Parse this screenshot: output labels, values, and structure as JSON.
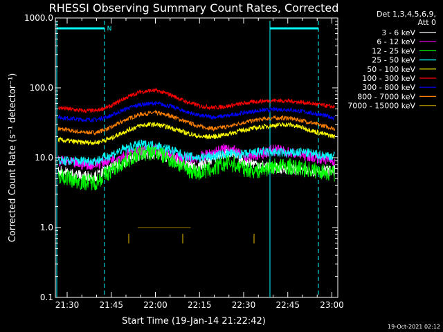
{
  "chart_data": {
    "type": "line",
    "title": "RHESSI Observing Summary Count Rates, Corrected",
    "xlabel": "Start Time (19-Jan-14 21:22:42)",
    "ylabel": "Corrected Count Rate (s⁻¹ detector⁻¹)",
    "yscale": "log",
    "ylim": [
      0.1,
      1000
    ],
    "xlim_minutes_from_2100": [
      26,
      122
    ],
    "ytick_labels": [
      "0.1",
      "1.0",
      "10.0",
      "100.0",
      "1000.0"
    ],
    "xtick_labels": [
      "21:30",
      "21:45",
      "22:00",
      "22:15",
      "22:30",
      "22:45",
      "23:00"
    ],
    "legend_header": [
      "Det 1,3,4,5,6,9,",
      "Att 0"
    ],
    "legend_placement": "right",
    "annotation_N": "N",
    "timestamp": "19-Oct-2021 02:12",
    "series": [
      {
        "name": "3 - 6 keV",
        "color": "#ffffff",
        "x": [
          27,
          35,
          40,
          45,
          50,
          55,
          60,
          65,
          70,
          75,
          80,
          85,
          90,
          95,
          100,
          105,
          110,
          115,
          121
        ],
        "values": [
          6.5,
          5.5,
          5.5,
          7,
          9,
          11,
          11.5,
          10,
          8,
          7.5,
          10,
          12,
          9,
          8,
          7,
          7,
          6.5,
          6.5,
          6.5
        ]
      },
      {
        "name": "6 - 12 keV",
        "color": "#ff00ff",
        "x": [
          27,
          35,
          40,
          45,
          50,
          55,
          60,
          65,
          70,
          75,
          80,
          85,
          90,
          95,
          100,
          105,
          110,
          115,
          121
        ],
        "values": [
          9,
          8,
          8,
          9.5,
          11,
          13,
          13,
          11,
          9.5,
          10,
          12,
          14,
          10,
          11,
          13,
          12,
          11,
          10,
          9
        ]
      },
      {
        "name": "12 - 25 keV",
        "color": "#00ff00",
        "x": [
          27,
          35,
          40,
          45,
          50,
          55,
          60,
          65,
          70,
          75,
          80,
          85,
          90,
          95,
          100,
          105,
          110,
          115,
          121
        ],
        "values": [
          5.5,
          4.5,
          4.5,
          6.5,
          9,
          11.5,
          12,
          9.5,
          7,
          6,
          7,
          8.5,
          7,
          6.5,
          7.5,
          7.5,
          7,
          6.5,
          6
        ]
      },
      {
        "name": "25 - 50 keV",
        "color": "#00ffff",
        "x": [
          27,
          35,
          40,
          45,
          50,
          55,
          60,
          65,
          70,
          75,
          80,
          85,
          90,
          95,
          100,
          105,
          110,
          115,
          121
        ],
        "values": [
          9,
          9,
          9,
          11,
          13.5,
          15.5,
          15,
          13,
          10.5,
          10,
          10.5,
          11.5,
          11,
          12,
          12,
          11.5,
          12,
          11,
          10.5
        ]
      },
      {
        "name": "50 - 100 keV",
        "color": "#ffff00",
        "x": [
          27,
          35,
          40,
          45,
          50,
          55,
          60,
          65,
          70,
          75,
          80,
          85,
          90,
          95,
          100,
          105,
          110,
          115,
          121
        ],
        "values": [
          18,
          16.5,
          16.5,
          19,
          24,
          29,
          30,
          27,
          23,
          20,
          20,
          22,
          25,
          27,
          29,
          30,
          27,
          23,
          20
        ]
      },
      {
        "name": "100 - 300 keV",
        "color": "#ff0000",
        "x": [
          27,
          35,
          40,
          45,
          50,
          55,
          60,
          65,
          70,
          75,
          80,
          85,
          90,
          95,
          100,
          105,
          110,
          115,
          121
        ],
        "values": [
          52,
          47,
          47,
          55,
          72,
          88,
          92,
          80,
          64,
          55,
          52,
          55,
          60,
          64,
          66,
          65,
          62,
          58,
          53
        ]
      },
      {
        "name": "300 - 800 keV",
        "color": "#0000ff",
        "x": [
          27,
          35,
          40,
          45,
          50,
          55,
          60,
          65,
          70,
          75,
          80,
          85,
          90,
          95,
          100,
          105,
          110,
          115,
          121
        ],
        "values": [
          38,
          35,
          35,
          40,
          50,
          58,
          60,
          55,
          46,
          40,
          38,
          40,
          44,
          47,
          49,
          49,
          46,
          42,
          37
        ]
      },
      {
        "name": "800 - 7000 keV",
        "color": "#ff8000",
        "x": [
          27,
          35,
          40,
          45,
          50,
          55,
          60,
          65,
          70,
          75,
          80,
          85,
          90,
          95,
          100,
          105,
          110,
          115,
          121
        ],
        "values": [
          26,
          23,
          23,
          27,
          35,
          42,
          44,
          40,
          33,
          28,
          26,
          28,
          32,
          35,
          37,
          37,
          34,
          30,
          26
        ]
      },
      {
        "name": "7000 - 15000 keV",
        "color": "#a08000",
        "x": [
          54,
          56,
          60,
          64,
          68,
          72
        ],
        "values": [
          1,
          1,
          1,
          1,
          1,
          1
        ]
      }
    ]
  }
}
